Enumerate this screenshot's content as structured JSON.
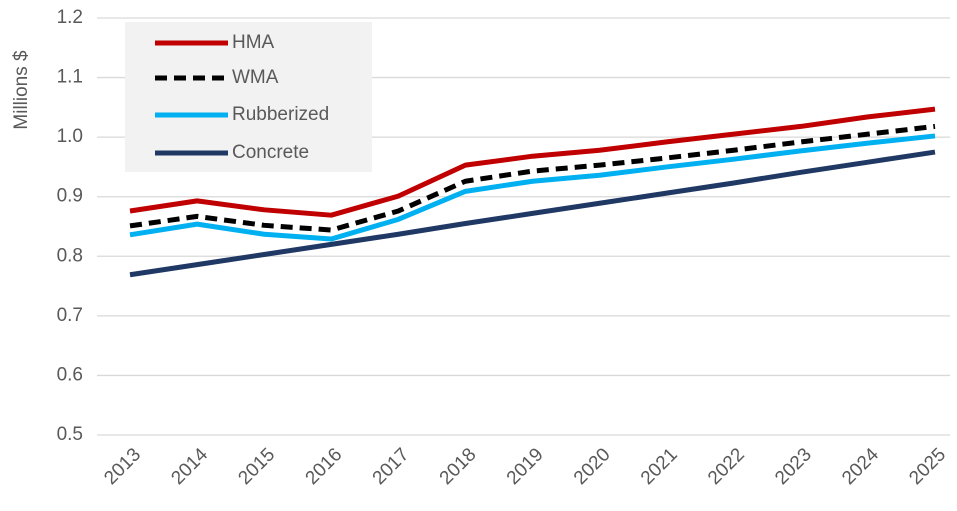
{
  "chart_data": {
    "type": "line",
    "y_label": "Millions $",
    "categories": [
      "2013",
      "2014",
      "2015",
      "2016",
      "2017",
      "2018",
      "2019",
      "2020",
      "2021",
      "2022",
      "2023",
      "2024",
      "2025"
    ],
    "series": [
      {
        "name": "HMA",
        "color": "#c00000",
        "style": "solid",
        "values": [
          0.876,
          0.893,
          0.878,
          0.869,
          0.901,
          0.953,
          0.968,
          0.978,
          0.992,
          1.005,
          1.018,
          1.034,
          1.047
        ]
      },
      {
        "name": "WMA",
        "color": "#000000",
        "style": "dashed",
        "values": [
          0.851,
          0.867,
          0.852,
          0.844,
          0.876,
          0.926,
          0.943,
          0.953,
          0.965,
          0.978,
          0.992,
          1.005,
          1.018
        ]
      },
      {
        "name": "Rubberized",
        "color": "#00b0f0",
        "style": "solid",
        "values": [
          0.836,
          0.854,
          0.837,
          0.829,
          0.862,
          0.909,
          0.926,
          0.936,
          0.95,
          0.963,
          0.977,
          0.99,
          1.002
        ]
      },
      {
        "name": "Concrete",
        "color": "#1f3864",
        "style": "solid",
        "values": [
          0.769,
          0.786,
          0.803,
          0.82,
          0.837,
          0.855,
          0.872,
          0.889,
          0.906,
          0.923,
          0.941,
          0.958,
          0.975
        ]
      }
    ],
    "ylim": [
      0.5,
      1.2
    ],
    "yticks": [
      0.5,
      0.6,
      0.7,
      0.8,
      0.9,
      {
        "value": 1,
        "label": "1.0"
      },
      1.1,
      1.2
    ],
    "grid": true,
    "legend": "upper left"
  }
}
